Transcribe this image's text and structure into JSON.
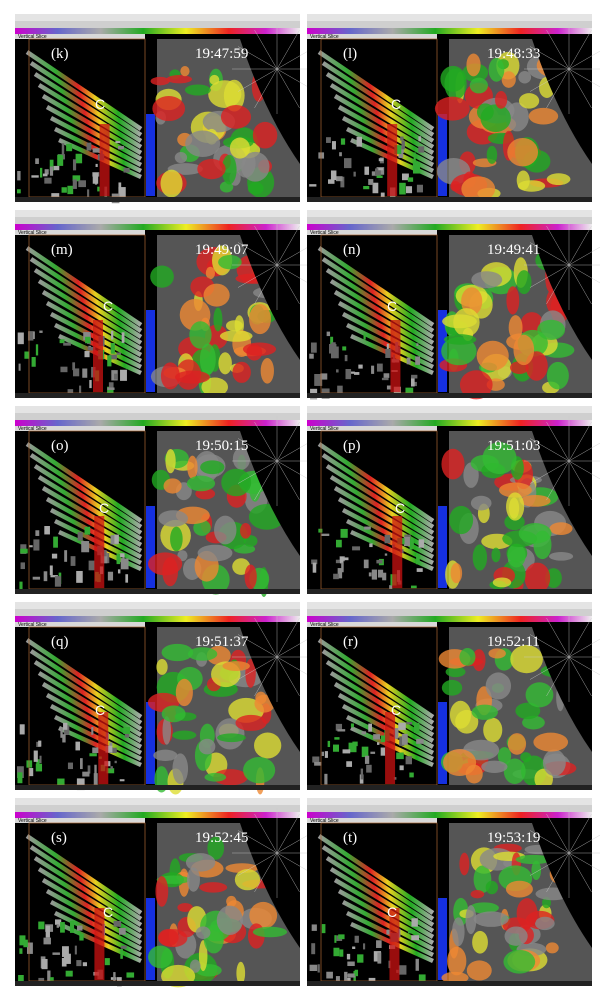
{
  "slice_title": "Vertical Slice",
  "panels": [
    {
      "label": "(k)",
      "time": "19:47:59",
      "marker": "C"
    },
    {
      "label": "(l)",
      "time": "19:48:33",
      "marker": "C"
    },
    {
      "label": "(m)",
      "time": "19:49:07",
      "marker": "C"
    },
    {
      "label": "(n)",
      "time": "19:49:41",
      "marker": "C"
    },
    {
      "label": "(o)",
      "time": "19:50:15",
      "marker": "C"
    },
    {
      "label": "(p)",
      "time": "19:51:03",
      "marker": "C"
    },
    {
      "label": "(q)",
      "time": "19:51:37",
      "marker": "C"
    },
    {
      "label": "(r)",
      "time": "19:52:11",
      "marker": "C"
    },
    {
      "label": "(s)",
      "time": "19:52:45",
      "marker": "C"
    },
    {
      "label": "(t)",
      "time": "19:53:19",
      "marker": "C"
    }
  ]
}
